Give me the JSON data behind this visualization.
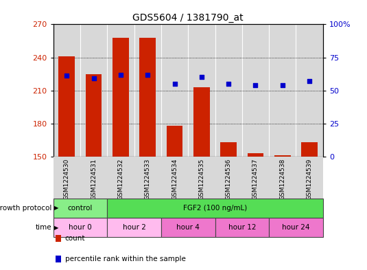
{
  "title": "GDS5604 / 1381790_at",
  "samples": [
    "GSM1224530",
    "GSM1224531",
    "GSM1224532",
    "GSM1224533",
    "GSM1224534",
    "GSM1224535",
    "GSM1224536",
    "GSM1224537",
    "GSM1224538",
    "GSM1224539"
  ],
  "counts": [
    241,
    225,
    258,
    258,
    178,
    213,
    163,
    153,
    151,
    163
  ],
  "percentiles": [
    61,
    59,
    62,
    62,
    55,
    60,
    55,
    54,
    54,
    57
  ],
  "ylim_left": [
    150,
    270
  ],
  "ylim_right": [
    0,
    100
  ],
  "yticks_left": [
    150,
    180,
    210,
    240,
    270
  ],
  "yticks_right": [
    0,
    25,
    50,
    75,
    100
  ],
  "ytick_right_labels": [
    "0",
    "25",
    "50",
    "75",
    "100%"
  ],
  "bar_color": "#cc2200",
  "dot_color": "#0000cc",
  "bar_width": 0.6,
  "col_bg_color": "#d8d8d8",
  "growth_protocol_row": {
    "label": "growth protocol",
    "items": [
      {
        "text": "control",
        "span": [
          0,
          2
        ],
        "color": "#88ee88"
      },
      {
        "text": "FGF2 (100 ng/mL)",
        "span": [
          2,
          10
        ],
        "color": "#55dd55"
      }
    ]
  },
  "time_row": {
    "label": "time",
    "items": [
      {
        "text": "hour 0",
        "span": [
          0,
          2
        ],
        "color": "#ffbbee"
      },
      {
        "text": "hour 2",
        "span": [
          2,
          4
        ],
        "color": "#ffbbee"
      },
      {
        "text": "hour 4",
        "span": [
          4,
          6
        ],
        "color": "#ee77cc"
      },
      {
        "text": "hour 12",
        "span": [
          6,
          8
        ],
        "color": "#ee77cc"
      },
      {
        "text": "hour 24",
        "span": [
          8,
          10
        ],
        "color": "#ee77cc"
      }
    ]
  },
  "legend_items": [
    {
      "label": "count",
      "color": "#cc2200"
    },
    {
      "label": "percentile rank within the sample",
      "color": "#0000cc"
    }
  ],
  "background_color": "#ffffff",
  "tick_label_color_left": "#cc2200",
  "tick_label_color_right": "#0000cc"
}
